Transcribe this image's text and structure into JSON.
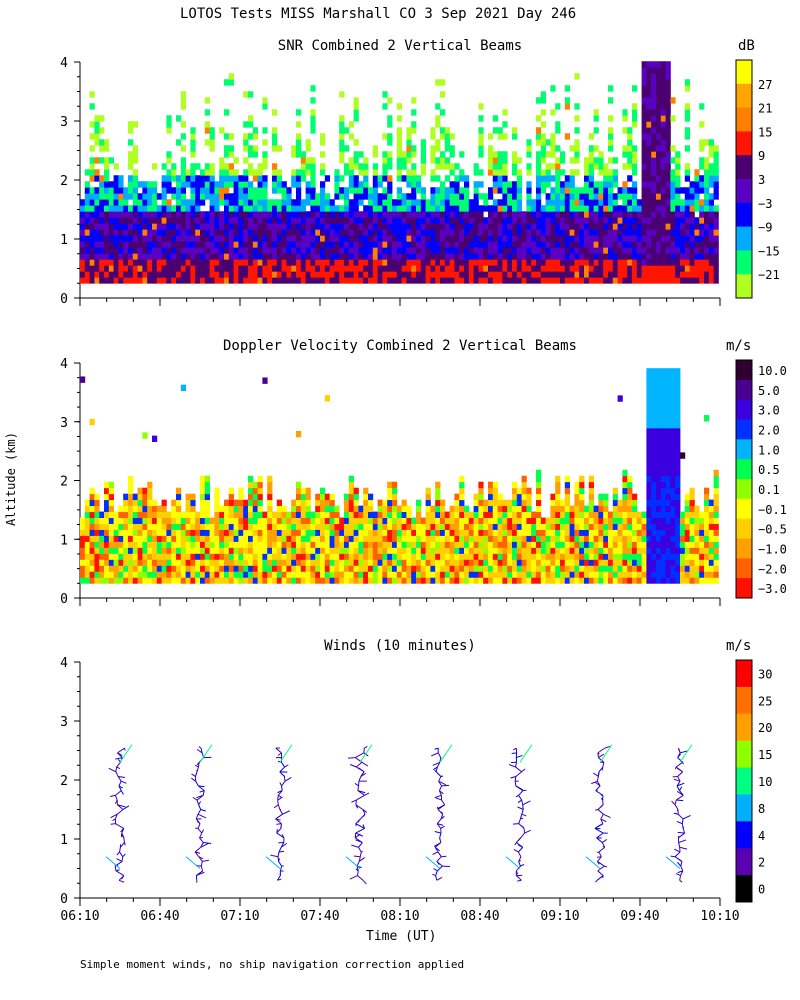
{
  "figure": {
    "title": "LOTOS Tests MISS Marshall CO   3 Sep 2021 Day 246",
    "ylabel": "Altitude (km)",
    "xlabel": "Time (UT)",
    "footnote": "Simple moment winds, no ship navigation correction applied",
    "xticks": [
      "06:10",
      "06:40",
      "07:10",
      "07:40",
      "08:10",
      "08:40",
      "09:10",
      "09:40",
      "10:10"
    ],
    "yticks": [
      "0",
      "1",
      "2",
      "3",
      "4"
    ]
  },
  "chart_data": [
    {
      "type": "heatmap",
      "title": "SNR Combined 2 Vertical Beams",
      "unit": "dB",
      "xlim": [
        "06:10",
        "10:10"
      ],
      "ylim": [
        0,
        4
      ],
      "colorbar": {
        "labels": [
          "27",
          "21",
          "15",
          "9",
          "3",
          "−3",
          "−9",
          "−15",
          "−21"
        ],
        "colors": [
          "#ffff00",
          "#ffa500",
          "#ff8000",
          "#ff1500",
          "#4a0070",
          "#5a00c0",
          "#0000ff",
          "#00aaff",
          "#00ff70",
          "#b0ff20"
        ]
      }
    },
    {
      "type": "heatmap",
      "title": "Doppler Velocity Combined 2 Vertical Beams",
      "unit": "m/s",
      "xlim": [
        "06:10",
        "10:10"
      ],
      "ylim": [
        0,
        4
      ],
      "colorbar": {
        "labels": [
          "10.0",
          "5.0",
          "3.0",
          "2.0",
          "1.0",
          "0.5",
          "0.1",
          "−0.1",
          "−0.5",
          "−1.0",
          "−2.0",
          "−3.0"
        ],
        "colors": [
          "#300030",
          "#4a0090",
          "#3a00e0",
          "#0030ff",
          "#00b4ff",
          "#00ff50",
          "#90ff00",
          "#ffff00",
          "#ffd000",
          "#ffa000",
          "#ff6000",
          "#ff1000"
        ]
      }
    },
    {
      "type": "scatter",
      "title": "Winds (10 minutes)",
      "unit": "m/s",
      "xlim": [
        "06:10",
        "10:10"
      ],
      "ylim": [
        0,
        4
      ],
      "profile_times": [
        "06:25",
        "06:55",
        "07:25",
        "07:55",
        "08:25",
        "08:55",
        "09:25",
        "09:55"
      ],
      "colorbar": {
        "labels": [
          "30",
          "25",
          "20",
          "15",
          "10",
          "8",
          "4",
          "2",
          "0"
        ],
        "colors": [
          "#ff0000",
          "#ff7000",
          "#ffa000",
          "#90ff00",
          "#00ff80",
          "#00b0ff",
          "#0000ff",
          "#5a00b0",
          "#000000"
        ]
      }
    }
  ]
}
